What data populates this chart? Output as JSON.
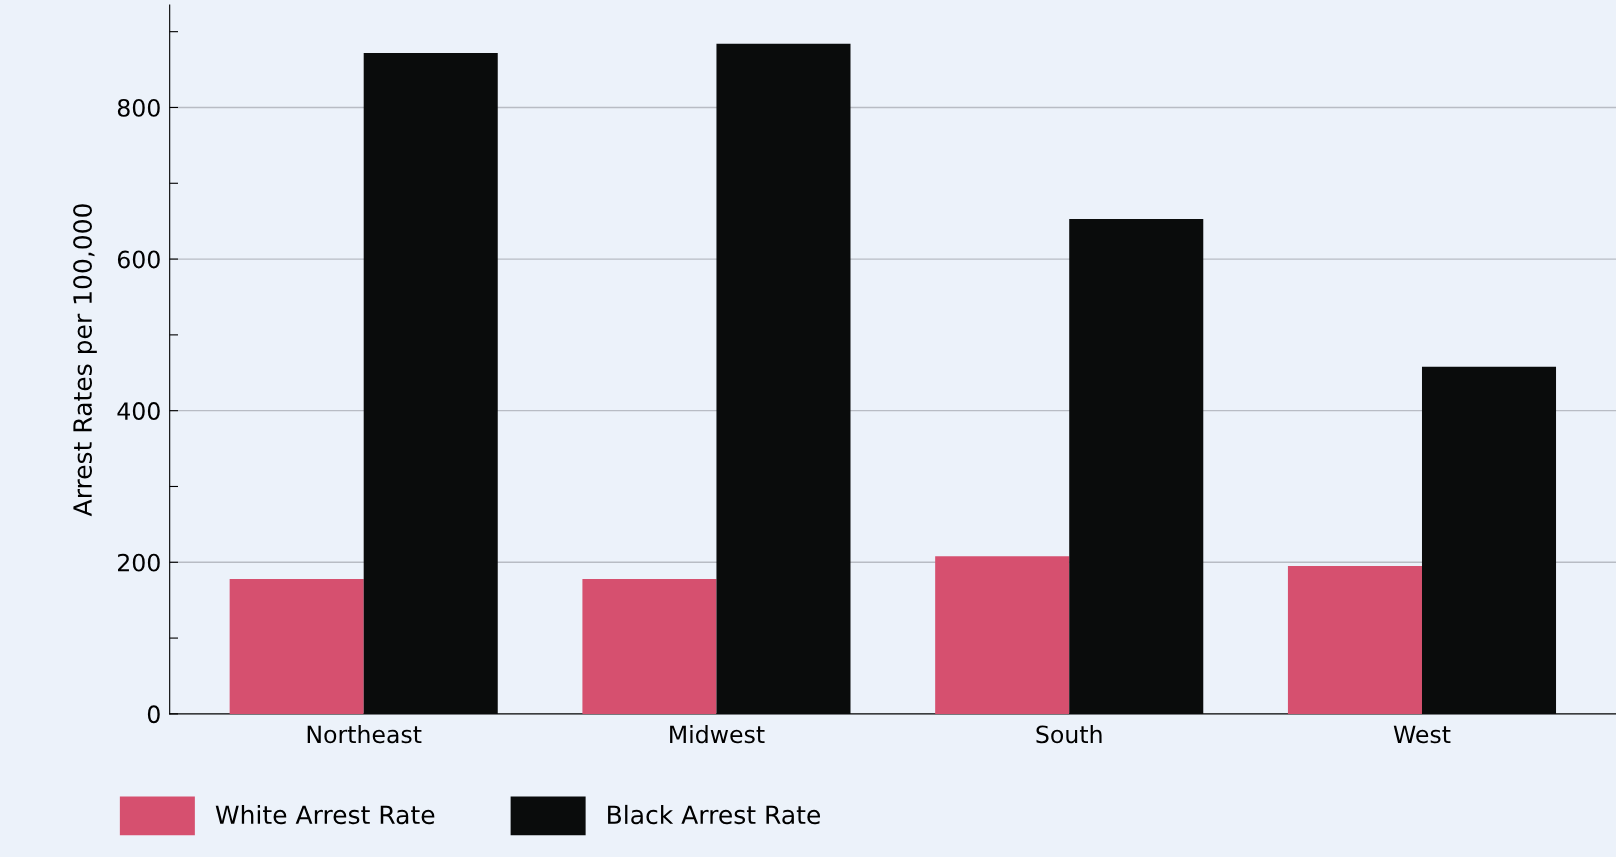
{
  "chart_data": {
    "type": "bar",
    "ylabel": "Arrest Rates per 100,000",
    "categories": [
      "Northeast",
      "Midwest",
      "South",
      "West"
    ],
    "series": [
      {
        "name": "White Arrest Rate",
        "color": "#d6506f",
        "values": [
          178,
          178,
          208,
          195
        ]
      },
      {
        "name": "Black Arrest Rate",
        "color": "#0a0c0c",
        "values": [
          872,
          884,
          653,
          458
        ]
      }
    ],
    "ylim": [
      0,
      935
    ],
    "yticks": [
      0,
      {
        "value": 100,
        "label": null
      },
      200,
      {
        "value": 300,
        "label": null
      },
      400,
      {
        "value": 500,
        "label": null
      },
      600,
      {
        "value": 700,
        "label": null
      },
      800,
      {
        "value": 900,
        "label": null
      }
    ],
    "grid": "y",
    "legend": "bottom"
  }
}
